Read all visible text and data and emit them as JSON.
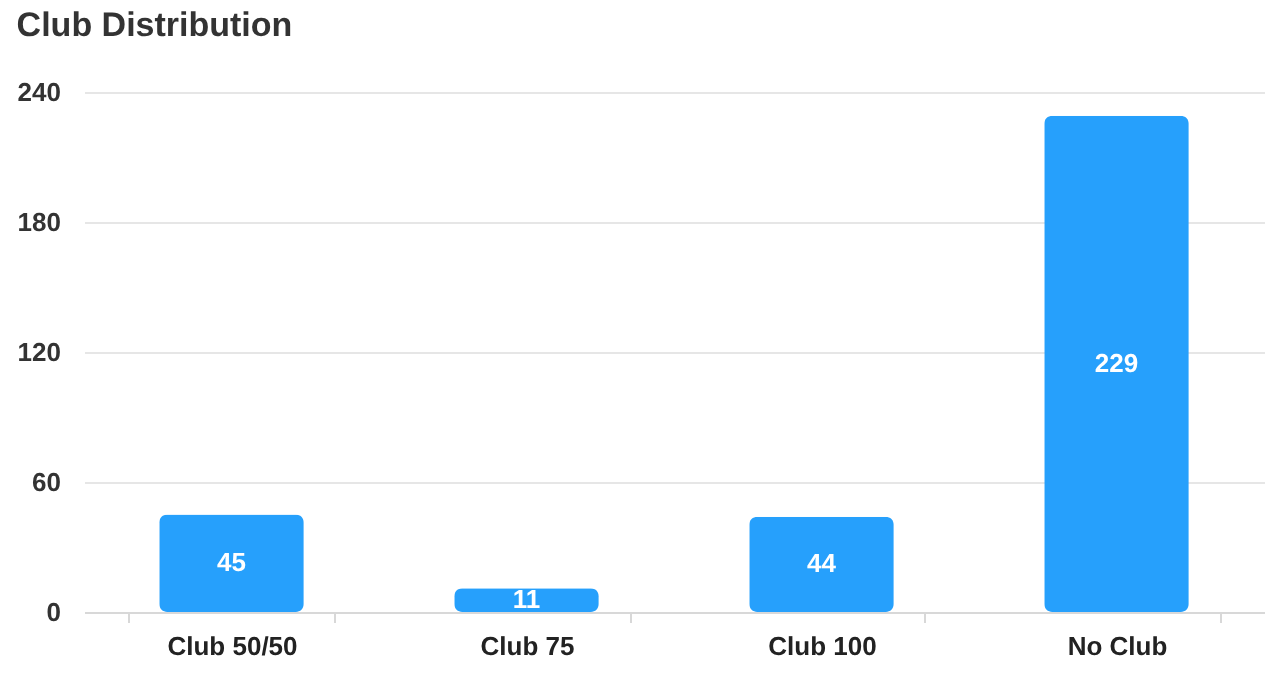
{
  "chart_data": {
    "type": "bar",
    "title": "Club Distribution",
    "categories": [
      "Club 50/50",
      "Club 75",
      "Club 100",
      "No Club"
    ],
    "values": [
      45,
      11,
      44,
      229
    ],
    "color": "#26a0fc",
    "ylim": [
      0,
      240
    ],
    "yticks": [
      0,
      60,
      120,
      180,
      240
    ],
    "grid": "y",
    "data_labels": true
  }
}
